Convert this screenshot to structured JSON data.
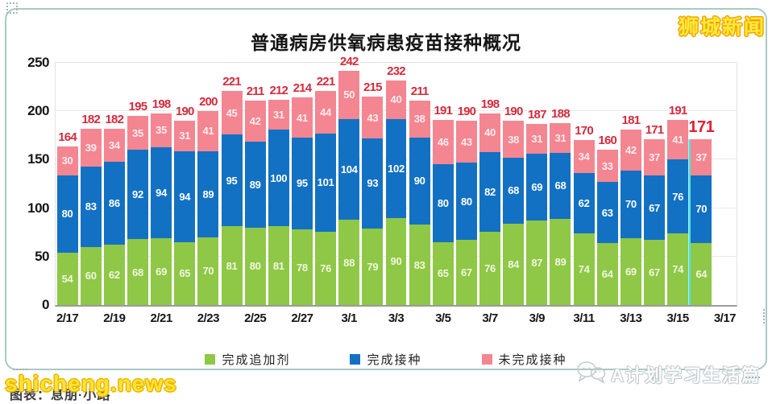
{
  "chart_data": {
    "type": "bar",
    "stacked": true,
    "title": "普通病房供氧病患疫苗接种概况",
    "categories": [
      "2/17",
      "2/18",
      "2/19",
      "2/20",
      "2/21",
      "2/22",
      "2/23",
      "2/24",
      "2/25",
      "2/26",
      "2/27",
      "2/28",
      "3/1",
      "3/2",
      "3/3",
      "3/4",
      "3/5",
      "3/6",
      "3/7",
      "3/8",
      "3/9",
      "3/10",
      "3/11",
      "3/12",
      "3/13",
      "3/14",
      "3/15",
      "3/16"
    ],
    "x_tick_labels": [
      "2/17",
      "2/19",
      "2/21",
      "2/23",
      "2/25",
      "2/27",
      "3/1",
      "3/3",
      "3/5",
      "3/7",
      "3/9",
      "3/11",
      "3/13",
      "3/15",
      "3/17"
    ],
    "series": [
      {
        "name": "完成追加剂",
        "color": "#8fc747",
        "label_color": "#f0f8df",
        "values": [
          54,
          60,
          62,
          68,
          69,
          65,
          70,
          81,
          80,
          81,
          78,
          76,
          88,
          79,
          90,
          83,
          65,
          67,
          76,
          84,
          87,
          89,
          74,
          64,
          69,
          67,
          74,
          64
        ]
      },
      {
        "name": "完成接种",
        "color": "#1371c3",
        "label_color": "#ffffff",
        "values": [
          80,
          83,
          86,
          92,
          94,
          94,
          89,
          95,
          89,
          100,
          95,
          101,
          104,
          93,
          102,
          90,
          80,
          80,
          82,
          68,
          69,
          68,
          62,
          63,
          70,
          67,
          76,
          70
        ]
      },
      {
        "name": "未完成接种",
        "color": "#f48691",
        "label_color": "#fdedef",
        "values": [
          30,
          39,
          34,
          35,
          35,
          31,
          41,
          45,
          42,
          31,
          41,
          44,
          50,
          43,
          40,
          38,
          46,
          43,
          40,
          38,
          31,
          31,
          34,
          33,
          42,
          37,
          41,
          37
        ]
      }
    ],
    "totals": [
      164,
      182,
      182,
      195,
      198,
      190,
      200,
      221,
      211,
      212,
      214,
      221,
      242,
      215,
      232,
      211,
      191,
      190,
      198,
      190,
      187,
      188,
      170,
      160,
      181,
      171,
      191,
      171
    ],
    "total_label_color": "#d42b3c",
    "highlight_last_total": true,
    "ylim": [
      0,
      250
    ],
    "yticks": [
      0,
      50,
      100,
      150,
      200,
      250
    ],
    "grid": true,
    "legend_position": "bottom"
  },
  "watermarks": {
    "top_right": "狮城新闻",
    "bottom_left_overlay": "shicheng.news",
    "bottom_left_caption": "图表：息朋·小路",
    "bottom_right": "A计划学习生活篇"
  }
}
